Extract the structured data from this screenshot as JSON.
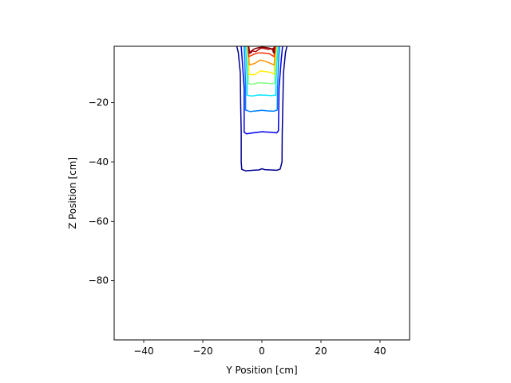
{
  "chart_data": {
    "type": "contour",
    "title": "",
    "xlabel": "Y Position [cm]",
    "ylabel": "Z Position [cm]",
    "xlim": [
      -50,
      50
    ],
    "ylim": [
      -100,
      -1
    ],
    "xticks": [
      -40,
      -20,
      0,
      20,
      40
    ],
    "xtick_labels": [
      "−40",
      "−20",
      "0",
      "20",
      "40"
    ],
    "yticks": [
      -20,
      -40,
      -60,
      -80
    ],
    "ytick_labels": [
      "−20",
      "−40",
      "−60",
      "−80"
    ],
    "grid": false,
    "colormap": "jet",
    "series": [
      {
        "color": "#00008f",
        "points": [
          [
            -8.5,
            -1
          ],
          [
            -8,
            -3
          ],
          [
            -7.3,
            -10
          ],
          [
            -7.2,
            -20
          ],
          [
            -7,
            -30
          ],
          [
            -7,
            -40
          ],
          [
            -6.8,
            -42.5
          ],
          [
            -5.5,
            -43
          ],
          [
            -3,
            -42.8
          ],
          [
            -1,
            -42.7
          ],
          [
            0,
            -42.3
          ],
          [
            1,
            -42.6
          ],
          [
            3,
            -42.7
          ],
          [
            5,
            -42.8
          ],
          [
            6.2,
            -42.4
          ],
          [
            6.8,
            -40
          ],
          [
            6.9,
            -30
          ],
          [
            7.1,
            -20
          ],
          [
            7.3,
            -10
          ],
          [
            8,
            -3
          ],
          [
            8.5,
            -1
          ]
        ]
      },
      {
        "color": "#0000ef",
        "points": [
          [
            -7,
            -1
          ],
          [
            -6.7,
            -5
          ],
          [
            -6,
            -15
          ],
          [
            -6,
            -30
          ],
          [
            -5.2,
            -30.5
          ],
          [
            -3,
            -30.2
          ],
          [
            0,
            -29.8
          ],
          [
            3,
            -30
          ],
          [
            5,
            -30.2
          ],
          [
            5.6,
            -29.5
          ],
          [
            5.8,
            -15
          ],
          [
            6.6,
            -5
          ],
          [
            7,
            -1
          ]
        ]
      },
      {
        "color": "#0080ff",
        "points": [
          [
            -6,
            -1
          ],
          [
            -5.8,
            -5
          ],
          [
            -5.5,
            -15
          ],
          [
            -5.5,
            -22.5
          ],
          [
            -4,
            -23
          ],
          [
            -2,
            -22.8
          ],
          [
            0,
            -22.6
          ],
          [
            2,
            -22.8
          ],
          [
            4,
            -22.9
          ],
          [
            5.2,
            -22.5
          ],
          [
            5.3,
            -15
          ],
          [
            5.7,
            -5
          ],
          [
            6,
            -1
          ]
        ]
      },
      {
        "color": "#00e5ff",
        "points": [
          [
            -5.5,
            -1
          ],
          [
            -5.3,
            -5
          ],
          [
            -5,
            -12
          ],
          [
            -5,
            -17.5
          ],
          [
            -3.5,
            -17.8
          ],
          [
            -1,
            -17.4
          ],
          [
            1,
            -17.5
          ],
          [
            3,
            -17.6
          ],
          [
            4.7,
            -17.5
          ],
          [
            4.8,
            -12
          ],
          [
            5.2,
            -5
          ],
          [
            5.5,
            -1
          ]
        ]
      },
      {
        "color": "#7fff7f",
        "points": [
          [
            -5,
            -1
          ],
          [
            -4.8,
            -5
          ],
          [
            -4.6,
            -10
          ],
          [
            -4.6,
            -13.5
          ],
          [
            -3.5,
            -13.8
          ],
          [
            -1,
            -13.3
          ],
          [
            1,
            -13.4
          ],
          [
            3,
            -13.6
          ],
          [
            4.4,
            -13.5
          ],
          [
            4.4,
            -10
          ],
          [
            4.8,
            -5
          ],
          [
            5,
            -1
          ]
        ]
      },
      {
        "color": "#ffee00",
        "points": [
          [
            -4.8,
            -1
          ],
          [
            -4.6,
            -5
          ],
          [
            -4.4,
            -8
          ],
          [
            -4.4,
            -10.5
          ],
          [
            -2.5,
            -10.6
          ],
          [
            -0.5,
            -9.3
          ],
          [
            1,
            -9.5
          ],
          [
            3,
            -9.8
          ],
          [
            4.2,
            -10.4
          ],
          [
            4.2,
            -8
          ],
          [
            4.6,
            -5
          ],
          [
            4.8,
            -1
          ]
        ]
      },
      {
        "color": "#ff9300",
        "points": [
          [
            -4.7,
            -1
          ],
          [
            -4.5,
            -4
          ],
          [
            -4.3,
            -7.3
          ],
          [
            -2.5,
            -6.8
          ],
          [
            -0.5,
            -5.6
          ],
          [
            1,
            -6
          ],
          [
            3,
            -6.8
          ],
          [
            4.1,
            -7.3
          ],
          [
            4.4,
            -4
          ],
          [
            4.7,
            -1
          ]
        ]
      },
      {
        "color": "#ff3000",
        "points": [
          [
            -4.6,
            -1
          ],
          [
            -4.4,
            -4.5
          ],
          [
            -2.5,
            -3.6
          ],
          [
            -1,
            -3.2
          ],
          [
            0.5,
            -3.3
          ],
          [
            2.5,
            -3.5
          ],
          [
            4.1,
            -4.5
          ],
          [
            4.5,
            -1
          ]
        ]
      },
      {
        "color": "#b20000",
        "points": [
          [
            -4.5,
            -1
          ],
          [
            -4.3,
            -3.2
          ],
          [
            -3.5,
            -2.5
          ],
          [
            -2,
            -2.8
          ],
          [
            -1,
            -2
          ],
          [
            0,
            -1.6
          ],
          [
            1,
            -1.8
          ],
          [
            2,
            -2
          ],
          [
            3.5,
            -1.9
          ],
          [
            4,
            -1.6
          ],
          [
            3.8,
            -3
          ],
          [
            4.3,
            -3.2
          ],
          [
            4.3,
            -1
          ]
        ]
      },
      {
        "color": "#800000",
        "points": [
          [
            -4.4,
            -1.2
          ],
          [
            -4.2,
            -3.4
          ],
          [
            -3.6,
            -3.1
          ],
          [
            -3.1,
            -2.2
          ],
          [
            -2.4,
            -1.8
          ],
          [
            -1.2,
            -1.5
          ],
          [
            0,
            -1.3
          ],
          [
            1.2,
            -1.4
          ],
          [
            2.4,
            -1.6
          ],
          [
            3.2,
            -1.8
          ],
          [
            3.6,
            -2.2
          ],
          [
            4.1,
            -3.3
          ],
          [
            4.2,
            -1.2
          ]
        ]
      }
    ]
  }
}
